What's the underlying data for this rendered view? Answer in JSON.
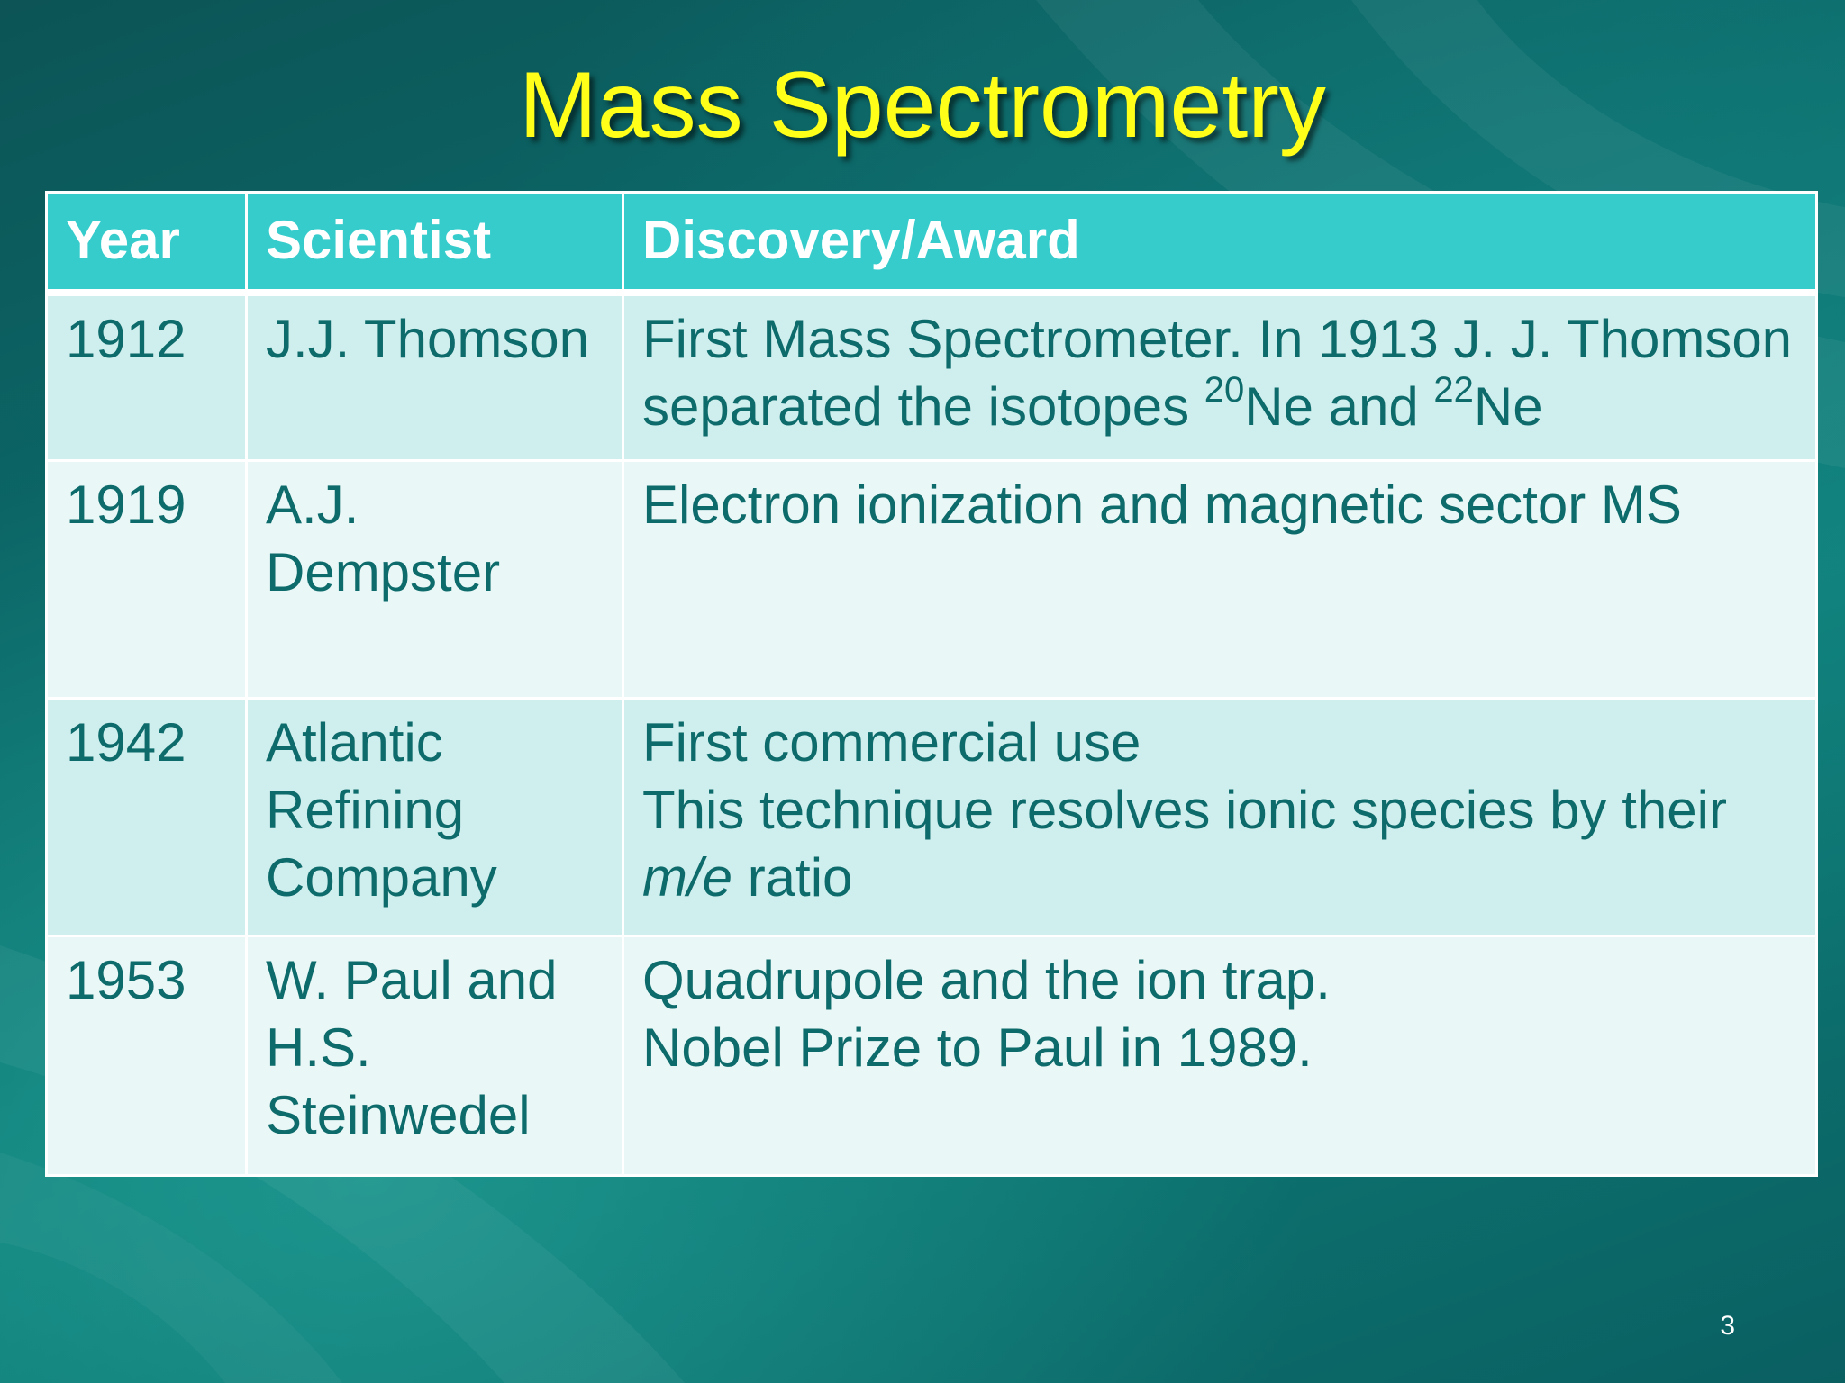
{
  "slide": {
    "title": "Mass Spectrometry",
    "page_number": "3"
  },
  "table": {
    "headers": [
      "Year",
      "Scientist",
      "Discovery/Award"
    ],
    "rows": [
      {
        "year": "1912",
        "scientist": "J.J. Thomson",
        "discovery": {
          "part1": "First Mass Spectrometer. In 1913 J. J. Thomson separated the isotopes ",
          "sup1": "20",
          "part2": "Ne and ",
          "sup2": "22",
          "part3": "Ne"
        }
      },
      {
        "year": "1919",
        "scientist": "A.J. Dempster",
        "discovery": "Electron ionization and magnetic sector MS"
      },
      {
        "year": "1942",
        "scientist": "Atlantic Refining Company",
        "discovery": {
          "line1": "First commercial use",
          "line2": "This technique resolves ionic species by their",
          "italic": "m/e",
          "tail": " ratio"
        }
      },
      {
        "year": "1953",
        "scientist": "W. Paul and H.S. Steinwedel",
        "discovery": {
          "line1": "Quadrupole and the ion trap.",
          "line2": "Nobel Prize to Paul in 1989."
        }
      }
    ]
  },
  "colors": {
    "title": "#ffff1a",
    "header_bg": "#36cccc",
    "row_odd_bg": "#cfeeee",
    "row_even_bg": "#e9f7f7",
    "cell_text": "#0e6b6b"
  }
}
